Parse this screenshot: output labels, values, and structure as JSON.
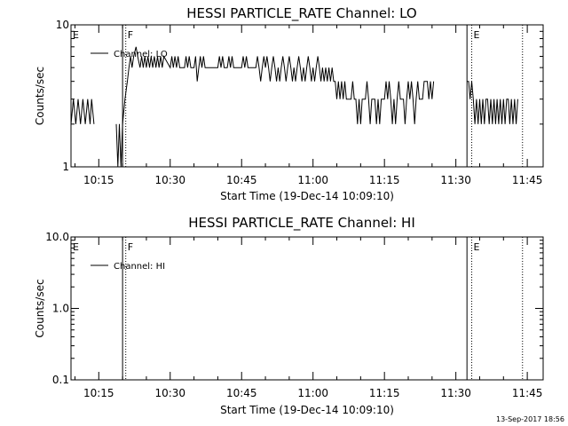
{
  "timestamp": "13-Sep-2017 18:56",
  "chart_data": [
    {
      "type": "line",
      "title": "HESSI PARTICLE_RATE Channel: LO",
      "xlabel": "Start Time (19-Dec-14 10:09:10)",
      "ylabel": "Counts/sec",
      "yscale": "log",
      "ylim": [
        1,
        10
      ],
      "yticks": [
        {
          "v": 1,
          "label": "1"
        },
        {
          "v": 10,
          "label": "10"
        }
      ],
      "xlim": [
        "10:09:10",
        "11:48:20"
      ],
      "xticks": [
        "10:15",
        "10:30",
        "10:45",
        "11:00",
        "11:15",
        "11:30",
        "11:45"
      ],
      "legend": {
        "placement": "top-left",
        "label": "Channel: LO"
      },
      "region_labels": [
        {
          "t": "10:09:10",
          "label": "E"
        },
        {
          "t": "10:20:40",
          "label": "F"
        },
        {
          "t": "11:33:20",
          "label": "E"
        }
      ],
      "solid_lines": [
        "10:20:00",
        "11:32:20"
      ],
      "dotted_lines": [
        "10:20:40",
        "11:33:20",
        "11:44:00"
      ],
      "series": [
        {
          "name": "Channel: LO",
          "points": [
            [
              "10:09:10",
              2
            ],
            [
              "10:09:40",
              3
            ],
            [
              "10:10:10",
              2
            ],
            [
              "10:10:40",
              3
            ],
            [
              "10:11:10",
              2
            ],
            [
              "10:11:40",
              3
            ],
            [
              "10:12:10",
              2
            ],
            [
              "10:12:40",
              3
            ],
            [
              "10:13:10",
              2
            ],
            [
              "10:13:30",
              3
            ],
            [
              "10:14:00",
              2
            ],
            [
              "10:18:40",
              2
            ],
            [
              "10:19:00",
              1
            ],
            [
              "10:19:20",
              2
            ],
            [
              "10:19:40",
              1
            ],
            [
              "10:20:00",
              2
            ],
            [
              "10:20:30",
              3
            ],
            [
              "10:21:00",
              4
            ],
            [
              "10:21:20",
              5
            ],
            [
              "10:21:40",
              6
            ],
            [
              "10:22:00",
              5
            ],
            [
              "10:22:20",
              6
            ],
            [
              "10:22:50",
              7
            ],
            [
              "10:23:10",
              6
            ],
            [
              "10:23:40",
              5
            ],
            [
              "10:24:00",
              6
            ],
            [
              "10:24:20",
              5
            ],
            [
              "10:24:40",
              6
            ],
            [
              "10:25:00",
              5
            ],
            [
              "10:25:20",
              6
            ],
            [
              "10:25:40",
              5
            ],
            [
              "10:26:00",
              6
            ],
            [
              "10:26:20",
              5
            ],
            [
              "10:26:40",
              6
            ],
            [
              "10:27:00",
              5
            ],
            [
              "10:27:20",
              6
            ],
            [
              "10:27:40",
              5
            ],
            [
              "10:28:00",
              6
            ],
            [
              "10:28:20",
              5
            ],
            [
              "10:28:40",
              6
            ],
            [
              "10:30:00",
              5
            ],
            [
              "10:30:20",
              6
            ],
            [
              "10:30:40",
              5
            ],
            [
              "10:31:00",
              6
            ],
            [
              "10:31:20",
              5
            ],
            [
              "10:31:40",
              6
            ],
            [
              "10:32:00",
              5
            ],
            [
              "10:33:00",
              5
            ],
            [
              "10:33:20",
              6
            ],
            [
              "10:33:40",
              5
            ],
            [
              "10:34:00",
              6
            ],
            [
              "10:34:20",
              5
            ],
            [
              "10:35:00",
              5
            ],
            [
              "10:35:20",
              6
            ],
            [
              "10:35:40",
              4
            ],
            [
              "10:36:00",
              5
            ],
            [
              "10:36:20",
              6
            ],
            [
              "10:36:40",
              5
            ],
            [
              "10:37:00",
              6
            ],
            [
              "10:37:20",
              5
            ],
            [
              "10:40:00",
              5
            ],
            [
              "10:40:20",
              6
            ],
            [
              "10:40:40",
              5
            ],
            [
              "10:41:00",
              6
            ],
            [
              "10:41:20",
              5
            ],
            [
              "10:42:00",
              5
            ],
            [
              "10:42:20",
              6
            ],
            [
              "10:42:40",
              5
            ],
            [
              "10:43:00",
              6
            ],
            [
              "10:43:20",
              5
            ],
            [
              "10:45:00",
              5
            ],
            [
              "10:45:20",
              6
            ],
            [
              "10:45:40",
              5
            ],
            [
              "10:46:00",
              6
            ],
            [
              "10:46:20",
              5
            ],
            [
              "10:46:40",
              5
            ],
            [
              "10:48:00",
              5
            ],
            [
              "10:48:20",
              6
            ],
            [
              "10:48:40",
              5
            ],
            [
              "10:49:00",
              4
            ],
            [
              "10:49:20",
              5
            ],
            [
              "10:49:40",
              6
            ],
            [
              "10:50:00",
              5
            ],
            [
              "10:50:20",
              6
            ],
            [
              "10:50:40",
              5
            ],
            [
              "10:51:00",
              4
            ],
            [
              "10:51:20",
              5
            ],
            [
              "10:51:40",
              6
            ],
            [
              "10:52:00",
              5
            ],
            [
              "10:52:20",
              4
            ],
            [
              "10:52:40",
              5
            ],
            [
              "10:53:00",
              4
            ],
            [
              "10:53:20",
              5
            ],
            [
              "10:53:40",
              6
            ],
            [
              "10:54:00",
              5
            ],
            [
              "10:54:20",
              4
            ],
            [
              "10:54:40",
              5
            ],
            [
              "10:55:00",
              6
            ],
            [
              "10:55:20",
              5
            ],
            [
              "10:55:40",
              4
            ],
            [
              "10:56:00",
              5
            ],
            [
              "10:56:20",
              4
            ],
            [
              "10:56:40",
              5
            ],
            [
              "10:57:00",
              6
            ],
            [
              "10:57:20",
              5
            ],
            [
              "10:57:40",
              4
            ],
            [
              "10:58:00",
              5
            ],
            [
              "10:58:20",
              4
            ],
            [
              "10:58:40",
              5
            ],
            [
              "10:59:00",
              6
            ],
            [
              "10:59:20",
              5
            ],
            [
              "10:59:40",
              4
            ],
            [
              "11:00:00",
              5
            ],
            [
              "11:00:20",
              4
            ],
            [
              "11:00:40",
              5
            ],
            [
              "11:01:00",
              6
            ],
            [
              "11:01:20",
              5
            ],
            [
              "11:01:40",
              4
            ],
            [
              "11:02:00",
              5
            ],
            [
              "11:02:20",
              4
            ],
            [
              "11:02:40",
              5
            ],
            [
              "11:03:00",
              4
            ],
            [
              "11:03:20",
              5
            ],
            [
              "11:03:40",
              4
            ],
            [
              "11:04:00",
              5
            ],
            [
              "11:04:20",
              4
            ],
            [
              "11:04:40",
              4
            ],
            [
              "11:05:00",
              3
            ],
            [
              "11:05:20",
              4
            ],
            [
              "11:05:40",
              3
            ],
            [
              "11:06:00",
              4
            ],
            [
              "11:06:20",
              3
            ],
            [
              "11:06:40",
              4
            ],
            [
              "11:07:00",
              3
            ],
            [
              "11:08:00",
              3
            ],
            [
              "11:08:20",
              4
            ],
            [
              "11:08:40",
              3
            ],
            [
              "11:09:00",
              3
            ],
            [
              "11:09:20",
              2
            ],
            [
              "11:09:40",
              3
            ],
            [
              "11:10:00",
              2
            ],
            [
              "11:10:20",
              3
            ],
            [
              "11:11:00",
              3
            ],
            [
              "11:11:20",
              4
            ],
            [
              "11:11:40",
              3
            ],
            [
              "11:12:00",
              2
            ],
            [
              "11:12:20",
              3
            ],
            [
              "11:13:00",
              3
            ],
            [
              "11:13:20",
              2
            ],
            [
              "11:13:40",
              3
            ],
            [
              "11:14:00",
              2
            ],
            [
              "11:14:20",
              3
            ],
            [
              "11:15:00",
              3
            ],
            [
              "11:15:20",
              4
            ],
            [
              "11:15:40",
              3
            ],
            [
              "11:16:00",
              4
            ],
            [
              "11:16:20",
              3
            ],
            [
              "11:16:40",
              2
            ],
            [
              "11:17:00",
              3
            ],
            [
              "11:17:20",
              2
            ],
            [
              "11:17:40",
              3
            ],
            [
              "11:18:00",
              4
            ],
            [
              "11:18:20",
              3
            ],
            [
              "11:19:00",
              3
            ],
            [
              "11:19:20",
              2
            ],
            [
              "11:19:40",
              3
            ],
            [
              "11:20:00",
              4
            ],
            [
              "11:20:20",
              3
            ],
            [
              "11:20:40",
              4
            ],
            [
              "11:21:00",
              3
            ],
            [
              "11:21:20",
              2
            ],
            [
              "11:21:40",
              3
            ],
            [
              "11:22:00",
              4
            ],
            [
              "11:22:20",
              3
            ],
            [
              "11:23:00",
              3
            ],
            [
              "11:23:20",
              4
            ],
            [
              "11:24:00",
              4
            ],
            [
              "11:24:20",
              3
            ],
            [
              "11:24:40",
              4
            ],
            [
              "11:25:00",
              3
            ],
            [
              "11:25:20",
              4
            ],
            [
              "11:32:20",
              4
            ],
            [
              "11:32:40",
              4
            ],
            [
              "11:33:00",
              3
            ],
            [
              "11:33:20",
              4
            ],
            [
              "11:33:40",
              3
            ],
            [
              "11:34:00",
              2
            ],
            [
              "11:34:20",
              3
            ],
            [
              "11:34:40",
              2
            ],
            [
              "11:35:00",
              3
            ],
            [
              "11:35:20",
              2
            ],
            [
              "11:35:40",
              3
            ],
            [
              "11:36:00",
              2
            ],
            [
              "11:36:20",
              3
            ],
            [
              "11:36:40",
              3
            ],
            [
              "11:37:00",
              2
            ],
            [
              "11:37:20",
              3
            ],
            [
              "11:37:40",
              2
            ],
            [
              "11:38:00",
              3
            ],
            [
              "11:38:20",
              2
            ],
            [
              "11:38:40",
              3
            ],
            [
              "11:39:00",
              2
            ],
            [
              "11:39:20",
              3
            ],
            [
              "11:39:40",
              2
            ],
            [
              "11:40:00",
              3
            ],
            [
              "11:40:20",
              2
            ],
            [
              "11:40:40",
              3
            ],
            [
              "11:41:00",
              3
            ],
            [
              "11:41:20",
              2
            ],
            [
              "11:41:40",
              3
            ],
            [
              "11:42:00",
              2
            ],
            [
              "11:42:20",
              3
            ],
            [
              "11:42:40",
              2
            ],
            [
              "11:43:00",
              3
            ]
          ]
        }
      ]
    },
    {
      "type": "line",
      "title": "HESSI PARTICLE_RATE Channel: HI",
      "xlabel": "Start Time (19-Dec-14 10:09:10)",
      "ylabel": "Counts/sec",
      "yscale": "log",
      "ylim": [
        0.1,
        10
      ],
      "yticks": [
        {
          "v": 0.1,
          "label": "0.1"
        },
        {
          "v": 1,
          "label": "1.0"
        },
        {
          "v": 10,
          "label": "10.0"
        }
      ],
      "xlim": [
        "10:09:10",
        "11:48:20"
      ],
      "xticks": [
        "10:15",
        "10:30",
        "10:45",
        "11:00",
        "11:15",
        "11:30",
        "11:45"
      ],
      "legend": {
        "placement": "top-left",
        "label": "Channel: HI"
      },
      "region_labels": [
        {
          "t": "10:09:10",
          "label": "E"
        },
        {
          "t": "10:20:40",
          "label": "F"
        },
        {
          "t": "11:33:20",
          "label": "E"
        }
      ],
      "solid_lines": [
        "10:20:00",
        "11:32:20"
      ],
      "dotted_lines": [
        "10:20:40",
        "11:33:20",
        "11:44:00"
      ],
      "series": [
        {
          "name": "Channel: HI",
          "points": []
        }
      ]
    }
  ]
}
